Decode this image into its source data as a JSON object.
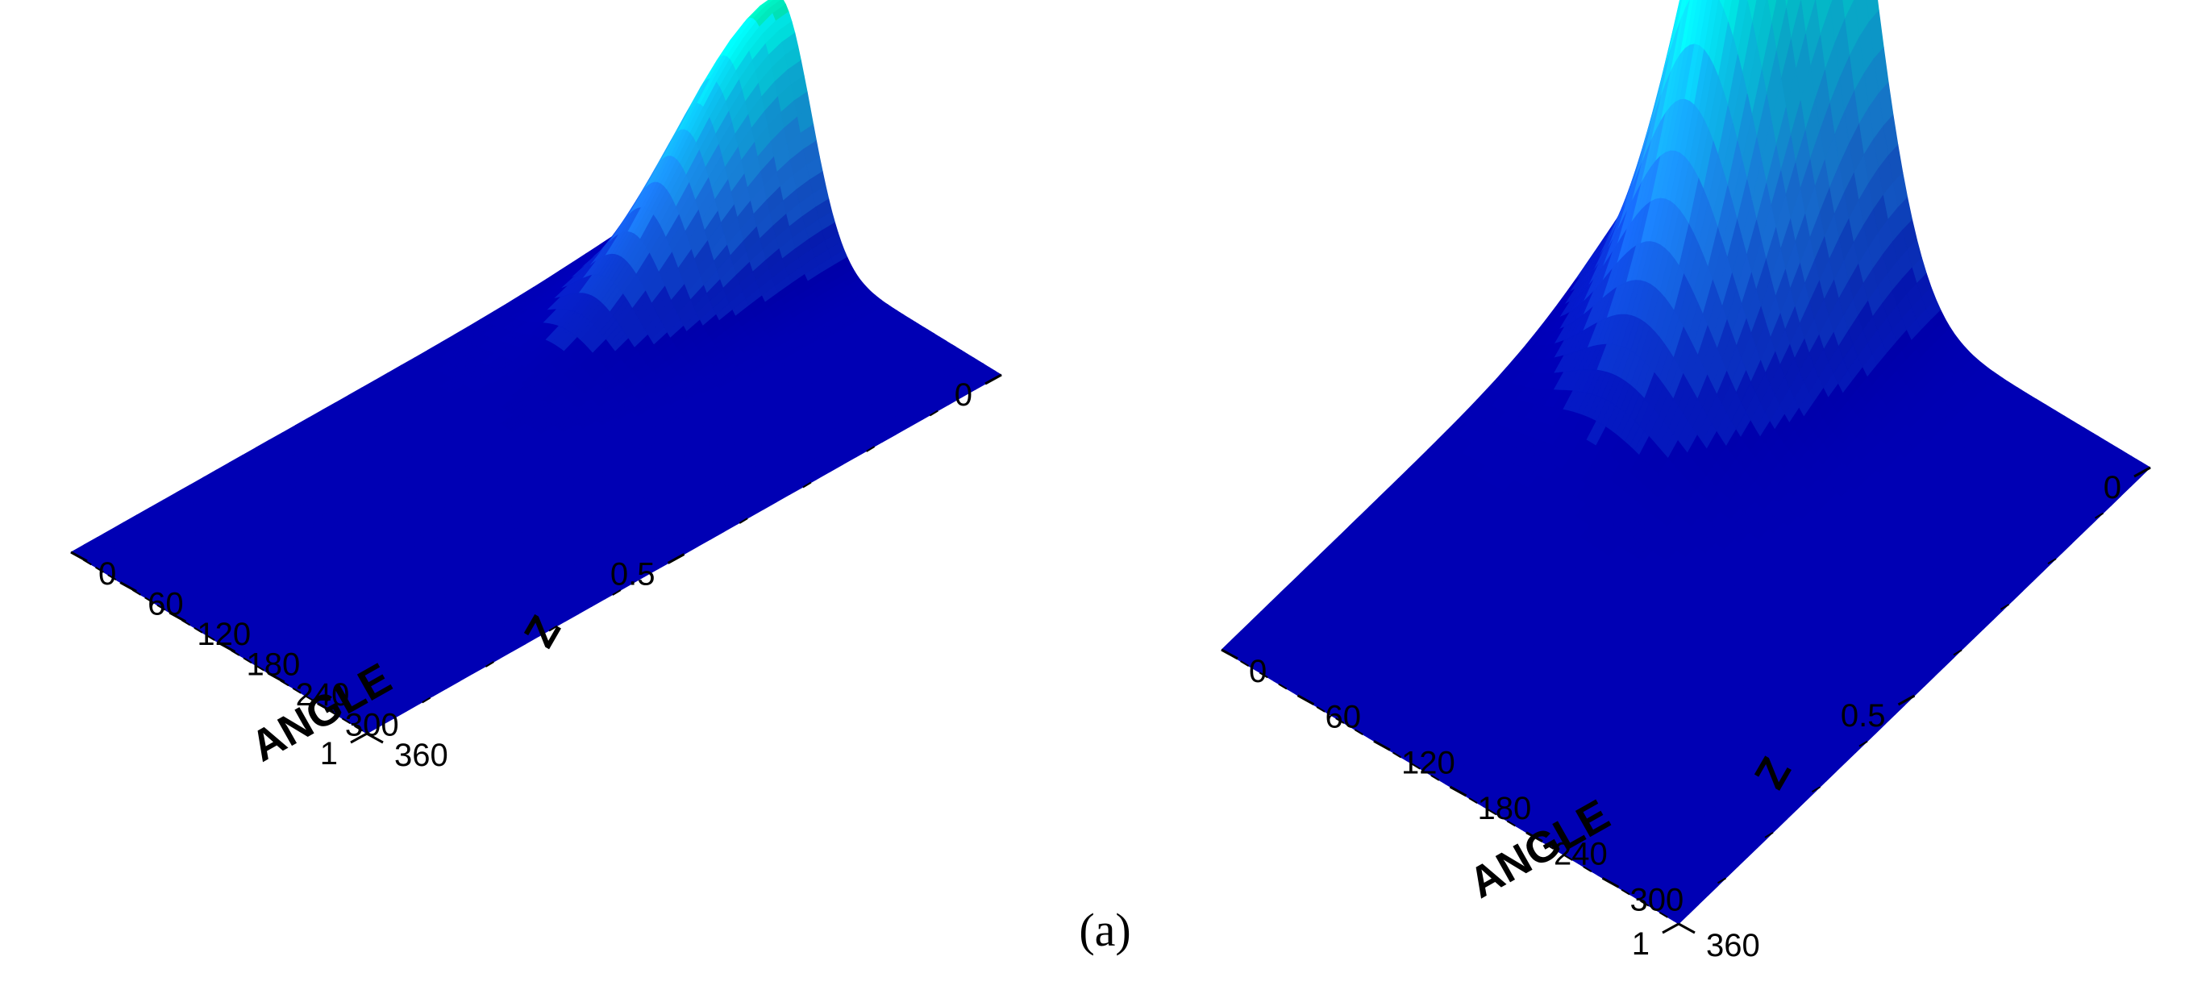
{
  "caption": "(a)",
  "colors": {
    "background": "#ffffff",
    "surface_low": "#0000b4",
    "surface_mid": "#1e8cff",
    "surface_cyan": "#00ffff",
    "surface_green": "#00d200",
    "surface_high": "#ffff00"
  },
  "chart_data": [
    {
      "type": "surface",
      "title": "",
      "zlabel": "",
      "y_axis": {
        "label": "Z",
        "ticks": [
          "0",
          "0.5",
          "1"
        ],
        "range": [
          0,
          1
        ]
      },
      "x_axis": {
        "label": "ANGLE",
        "ticks": [
          "0",
          "60",
          "120",
          "180",
          "240",
          "300",
          "360"
        ],
        "range": [
          0,
          360
        ]
      },
      "peak": {
        "angle": 90,
        "z": 0,
        "relative_height": 0.58
      },
      "peak_width": {
        "angle": 38,
        "z": 0.16
      },
      "colormap": [
        "#0000b4",
        "#1e8cff",
        "#00ffff",
        "#00d200",
        "#ffff00"
      ],
      "contour_levels": 18
    },
    {
      "type": "surface",
      "title": "",
      "zlabel": "",
      "y_axis": {
        "label": "Z",
        "ticks": [
          "0",
          "0.5",
          "1"
        ],
        "range": [
          0,
          1
        ]
      },
      "x_axis": {
        "label": "ANGLE",
        "ticks": [
          "0",
          "60",
          "120",
          "180",
          "240",
          "300",
          "360"
        ],
        "range": [
          0,
          360
        ]
      },
      "peak": {
        "angle": 90,
        "z": 0,
        "relative_height": 1.0
      },
      "peak_width": {
        "angle": 42,
        "z": 0.18
      },
      "colormap": [
        "#0000b4",
        "#1e8cff",
        "#00ffff",
        "#00d200",
        "#ffff00"
      ],
      "contour_levels": 22
    }
  ]
}
